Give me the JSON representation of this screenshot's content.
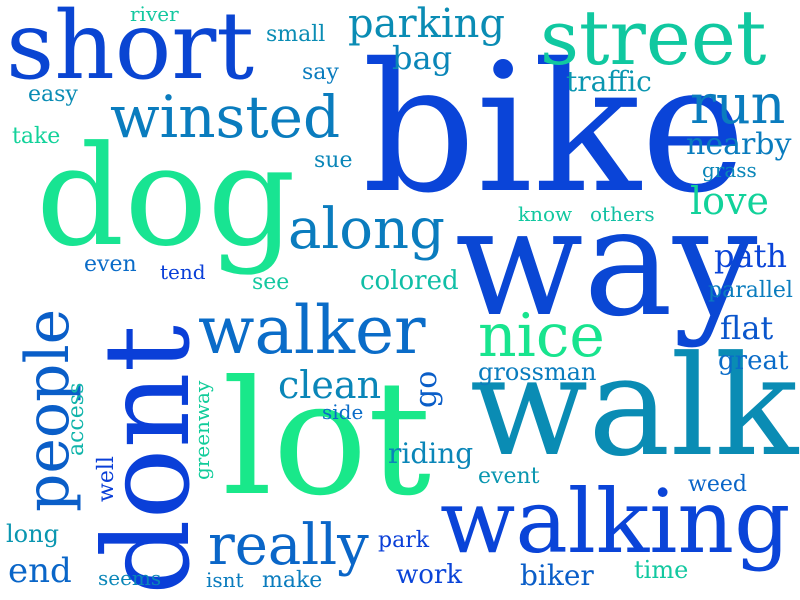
{
  "words": [
    {
      "text": "bike",
      "color": "#0a44d8"
    },
    {
      "text": "way",
      "color": "#0a47d4"
    },
    {
      "text": "walk",
      "color": "#0a8cb4"
    },
    {
      "text": "lot",
      "color": "#19e88a"
    },
    {
      "text": "dog",
      "color": "#18e492"
    },
    {
      "text": "dont",
      "color": "#0a3fd8"
    },
    {
      "text": "walking",
      "color": "#0a44d8"
    },
    {
      "text": "short",
      "color": "#0a45d2"
    },
    {
      "text": "street",
      "color": "#10c8a0"
    },
    {
      "text": "walker",
      "color": "#0a6cc8"
    },
    {
      "text": "winsted",
      "color": "#0a7cbe"
    },
    {
      "text": "people",
      "color": "#0a5ec8"
    },
    {
      "text": "along",
      "color": "#0a7cbe"
    },
    {
      "text": "nice",
      "color": "#18e48e"
    },
    {
      "text": "really",
      "color": "#0a66c8"
    },
    {
      "text": "run",
      "color": "#0a7cbe"
    },
    {
      "text": "parking",
      "color": "#0a8cb4"
    },
    {
      "text": "clean",
      "color": "#0a86b8"
    },
    {
      "text": "love",
      "color": "#12d29a"
    },
    {
      "text": "nearby",
      "color": "#0a7cbe"
    },
    {
      "text": "path",
      "color": "#0a44d8"
    },
    {
      "text": "flat",
      "color": "#0a56cc"
    },
    {
      "text": "traffic",
      "color": "#0a96b0"
    },
    {
      "text": "bag",
      "color": "#0a86b8"
    },
    {
      "text": "colored",
      "color": "#10bea6"
    },
    {
      "text": "riding",
      "color": "#0a86b8"
    },
    {
      "text": "end",
      "color": "#0a66c8"
    },
    {
      "text": "long",
      "color": "#0a96b0"
    },
    {
      "text": "biker",
      "color": "#0a5ec8"
    },
    {
      "text": "grossman",
      "color": "#0a7cbe"
    },
    {
      "text": "go",
      "color": "#0a5ec8"
    },
    {
      "text": "access",
      "color": "#10b4aa"
    },
    {
      "text": "greenway",
      "color": "#12cc9a"
    },
    {
      "text": "well",
      "color": "#0a3fd8"
    },
    {
      "text": "small",
      "color": "#0a8cb4"
    },
    {
      "text": "river",
      "color": "#14c8a0"
    },
    {
      "text": "say",
      "color": "#0a7cbe"
    },
    {
      "text": "easy",
      "color": "#0a8cb4"
    },
    {
      "text": "take",
      "color": "#12d29a"
    },
    {
      "text": "sue",
      "color": "#0a86b8"
    },
    {
      "text": "grass",
      "color": "#0a86b8"
    },
    {
      "text": "know",
      "color": "#12c8a0"
    },
    {
      "text": "others",
      "color": "#12c0a4"
    },
    {
      "text": "even",
      "color": "#0a6cc8"
    },
    {
      "text": "tend",
      "color": "#0a3fd8"
    },
    {
      "text": "see",
      "color": "#14c8a0"
    },
    {
      "text": "parallel",
      "color": "#0a7cbe"
    },
    {
      "text": "great",
      "color": "#0a6cc8"
    },
    {
      "text": "side",
      "color": "#0a6cc8"
    },
    {
      "text": "event",
      "color": "#0a96b0"
    },
    {
      "text": "weed",
      "color": "#0a66c8"
    },
    {
      "text": "park",
      "color": "#0a3fd8"
    },
    {
      "text": "time",
      "color": "#12c8a0"
    },
    {
      "text": "work",
      "color": "#0a44d8"
    },
    {
      "text": "seems",
      "color": "#0a86b8"
    },
    {
      "text": "isnt",
      "color": "#0a7cbe"
    },
    {
      "text": "make",
      "color": "#0a7cbe"
    }
  ]
}
